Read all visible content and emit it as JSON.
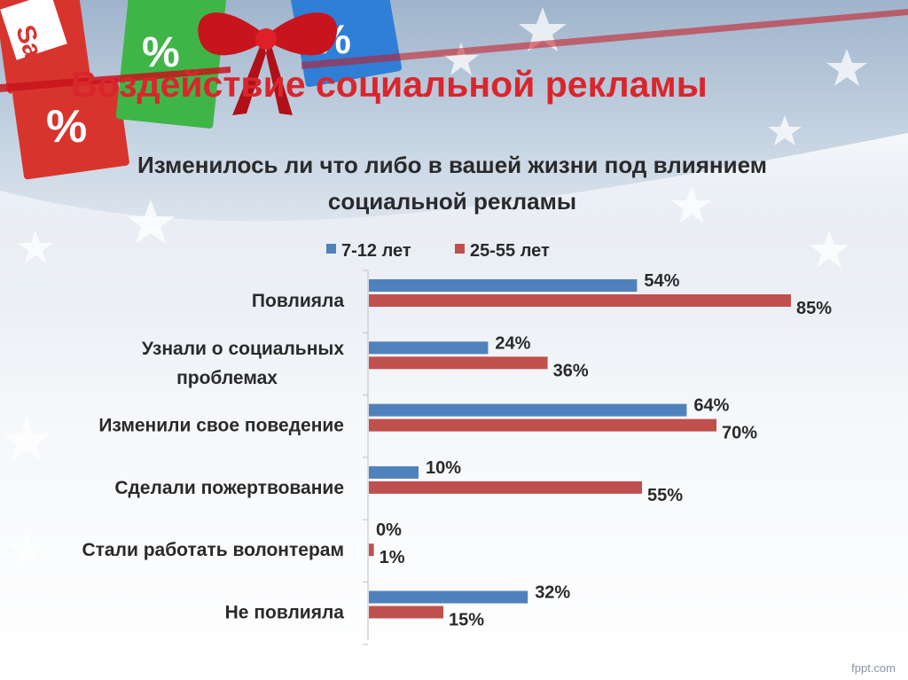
{
  "slide": {
    "title": "Воздействие социальной рекламы",
    "question": "Изменилось ли что либо в вашей жизни под влиянием социальной рекламы",
    "footer": "fppt.com",
    "decor": {
      "sale_tag_text": "Sale",
      "percent_sign": "%"
    }
  },
  "colors": {
    "title": "#d9262c",
    "series_blue": "#4f81bd",
    "series_red": "#c0504d",
    "text": "#2a2a2a"
  },
  "chart_data": {
    "type": "bar",
    "orientation": "horizontal",
    "categories": [
      [
        "Повлияла"
      ],
      [
        "Узнали о социальных",
        "проблемах"
      ],
      [
        "Изменили свое поведение"
      ],
      [
        "Сделали пожертвование"
      ],
      [
        "Стали работать волонтерам"
      ],
      [
        "Не повлияла"
      ]
    ],
    "series": [
      {
        "name": "7-12 лет",
        "color": "#4f81bd",
        "values": [
          54,
          24,
          64,
          10,
          0,
          32
        ],
        "labels": [
          "54%",
          "24%",
          "64%",
          "10%",
          "0%",
          "32%"
        ]
      },
      {
        "name": "25-55 лет",
        "color": "#c0504d",
        "values": [
          85,
          36,
          70,
          55,
          1,
          15
        ],
        "labels": [
          "85%",
          "36%",
          "70%",
          "55%",
          "1%",
          "15%"
        ]
      }
    ],
    "xlim": [
      0,
      100
    ],
    "legend": "top",
    "grid": false
  }
}
